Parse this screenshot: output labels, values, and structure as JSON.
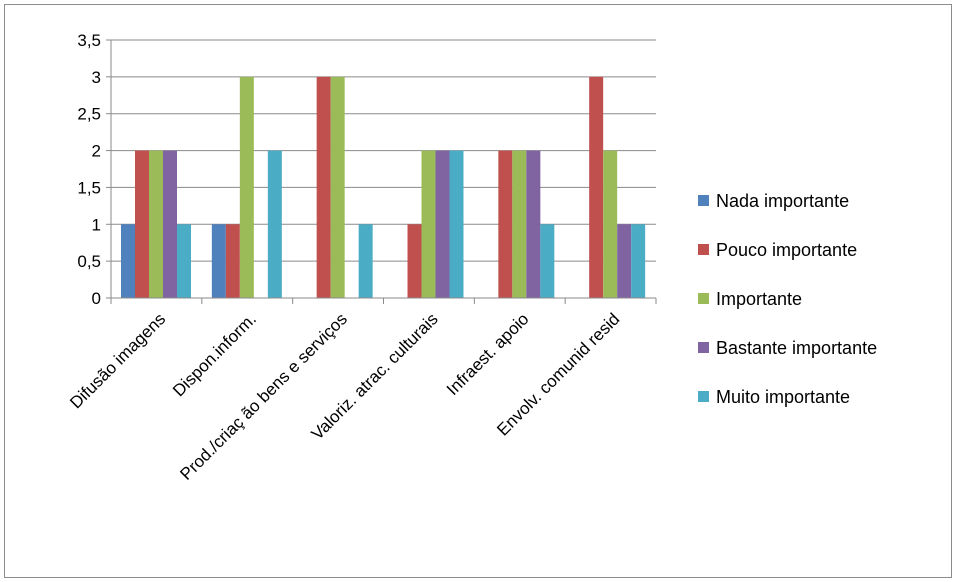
{
  "chart_data": {
    "type": "bar",
    "title": "",
    "xlabel": "",
    "ylabel": "",
    "ylim": [
      0,
      3.5
    ],
    "yticks": [
      "0",
      "0,5",
      "1",
      "1,5",
      "2",
      "2,5",
      "3",
      "3,5"
    ],
    "grid": true,
    "legend_position": "right",
    "categories": [
      "Difusão imagens",
      "Dispon.inform.",
      "Prod./criaç ão bens e serviços",
      "Valoriz. atrac. culturais",
      "Infraest. apoio",
      "Envolv. comunid resid"
    ],
    "series": [
      {
        "name": "Nada importante",
        "color": "#4f81bd",
        "values": [
          1,
          1,
          0,
          0,
          0,
          0
        ]
      },
      {
        "name": "Pouco importante",
        "color": "#c0504d",
        "values": [
          2,
          1,
          3,
          1,
          2,
          3
        ]
      },
      {
        "name": "Importante",
        "color": "#9bbb59",
        "values": [
          2,
          3,
          3,
          2,
          2,
          2
        ]
      },
      {
        "name": "Bastante importante",
        "color": "#8064a2",
        "values": [
          2,
          0,
          0,
          2,
          2,
          1
        ]
      },
      {
        "name": "Muito importante",
        "color": "#4bacc6",
        "values": [
          1,
          2,
          1,
          2,
          1,
          1
        ]
      }
    ]
  }
}
